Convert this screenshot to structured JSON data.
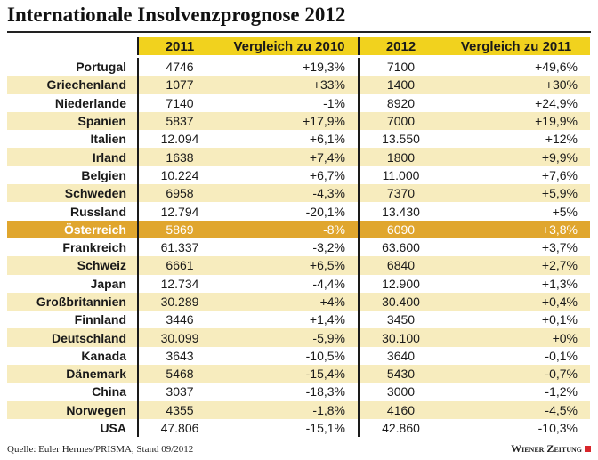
{
  "title": "Internationale Insolvenzprognose 2012",
  "source": "Quelle: Euler Hermes/PRISMA, Stand 09/2012",
  "brand": "Wiener Zeitung",
  "colors": {
    "header": "#f1d21e",
    "stripe": "#f7ecbe",
    "highlight": "#e0a62e",
    "brand_mark": "#d8262b"
  },
  "chart_data": {
    "type": "table",
    "columns": [
      "",
      "2011",
      "Vergleich zu 2010",
      "2012",
      "Vergleich zu 2011"
    ],
    "highlighted_row": "Österreich",
    "rows": [
      {
        "country": "Portugal",
        "v2011": "4746",
        "chg2010": "+19,3%",
        "v2012": "7100",
        "chg2011": "+49,6%"
      },
      {
        "country": "Griechenland",
        "v2011": "1077",
        "chg2010": "+33%",
        "v2012": "1400",
        "chg2011": "+30%"
      },
      {
        "country": "Niederlande",
        "v2011": "7140",
        "chg2010": "-1%",
        "v2012": "8920",
        "chg2011": "+24,9%"
      },
      {
        "country": "Spanien",
        "v2011": "5837",
        "chg2010": "+17,9%",
        "v2012": "7000",
        "chg2011": "+19,9%"
      },
      {
        "country": "Italien",
        "v2011": "12.094",
        "chg2010": "+6,1%",
        "v2012": "13.550",
        "chg2011": "+12%"
      },
      {
        "country": "Irland",
        "v2011": "1638",
        "chg2010": "+7,4%",
        "v2012": "1800",
        "chg2011": "+9,9%"
      },
      {
        "country": "Belgien",
        "v2011": "10.224",
        "chg2010": "+6,7%",
        "v2012": "11.000",
        "chg2011": "+7,6%"
      },
      {
        "country": "Schweden",
        "v2011": "6958",
        "chg2010": "-4,3%",
        "v2012": "7370",
        "chg2011": "+5,9%"
      },
      {
        "country": "Russland",
        "v2011": "12.794",
        "chg2010": "-20,1%",
        "v2012": "13.430",
        "chg2011": "+5%"
      },
      {
        "country": "Österreich",
        "v2011": "5869",
        "chg2010": "-8%",
        "v2012": "6090",
        "chg2011": "+3,8%"
      },
      {
        "country": "Frankreich",
        "v2011": "61.337",
        "chg2010": "-3,2%",
        "v2012": "63.600",
        "chg2011": "+3,7%"
      },
      {
        "country": "Schweiz",
        "v2011": "6661",
        "chg2010": "+6,5%",
        "v2012": "6840",
        "chg2011": "+2,7%"
      },
      {
        "country": "Japan",
        "v2011": "12.734",
        "chg2010": "-4,4%",
        "v2012": "12.900",
        "chg2011": "+1,3%"
      },
      {
        "country": "Großbritannien",
        "v2011": "30.289",
        "chg2010": "+4%",
        "v2012": "30.400",
        "chg2011": "+0,4%"
      },
      {
        "country": "Finnland",
        "v2011": "3446",
        "chg2010": "+1,4%",
        "v2012": "3450",
        "chg2011": "+0,1%"
      },
      {
        "country": "Deutschland",
        "v2011": "30.099",
        "chg2010": "-5,9%",
        "v2012": "30.100",
        "chg2011": "+0%"
      },
      {
        "country": "Kanada",
        "v2011": "3643",
        "chg2010": "-10,5%",
        "v2012": "3640",
        "chg2011": "-0,1%"
      },
      {
        "country": "Dänemark",
        "v2011": "5468",
        "chg2010": "-15,4%",
        "v2012": "5430",
        "chg2011": "-0,7%"
      },
      {
        "country": "China",
        "v2011": "3037",
        "chg2010": "-18,3%",
        "v2012": "3000",
        "chg2011": "-1,2%"
      },
      {
        "country": "Norwegen",
        "v2011": "4355",
        "chg2010": "-1,8%",
        "v2012": "4160",
        "chg2011": "-4,5%"
      },
      {
        "country": "USA",
        "v2011": "47.806",
        "chg2010": "-15,1%",
        "v2012": "42.860",
        "chg2011": "-10,3%"
      }
    ]
  }
}
